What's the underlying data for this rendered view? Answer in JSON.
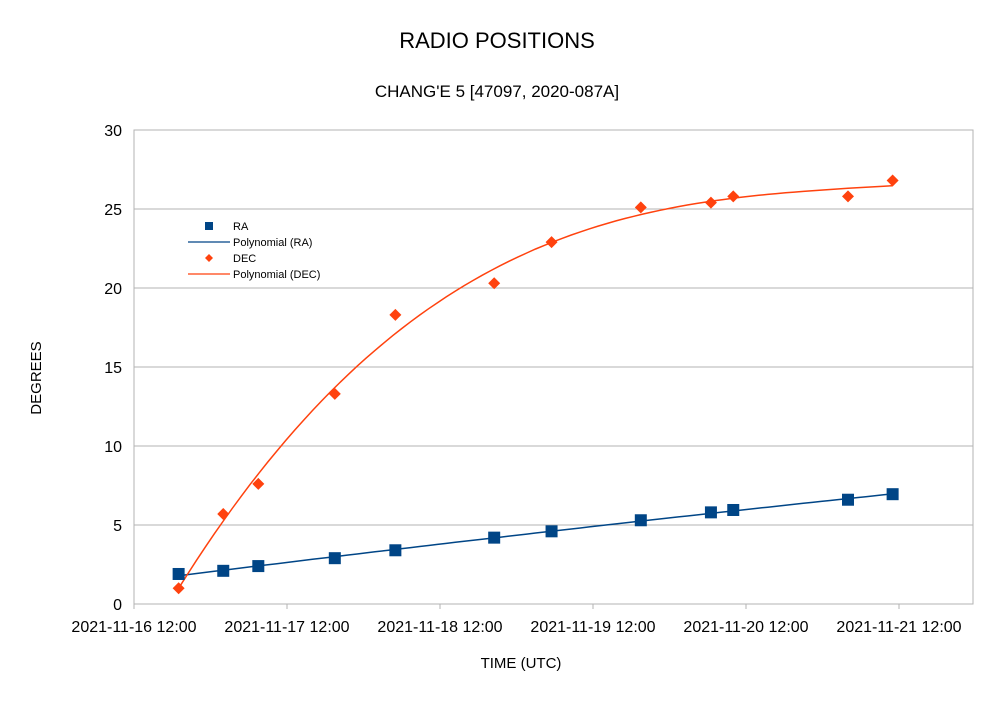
{
  "chart_data": {
    "type": "scatter",
    "title": "RADIO POSITIONS",
    "subtitle": "CHANG'E 5 [47097, 2020-087A]",
    "xlabel": "TIME (UTC)",
    "ylabel": "DEGREES",
    "ylim": [
      0,
      30
    ],
    "y_ticks": [
      "0",
      "5",
      "10",
      "15",
      "20",
      "25",
      "30"
    ],
    "x_ticks": [
      "2021-11-16 12:00",
      "2021-11-17 12:00",
      "2021-11-18 12:00",
      "2021-11-19 12:00",
      "2021-11-20 12:00",
      "2021-11-21 12:00"
    ],
    "grid": "horizontal",
    "legend_position": "top-left",
    "legend": [
      "RA",
      "Polynomial (RA)",
      "DEC",
      "Polynomial (DEC)"
    ],
    "series": [
      {
        "name": "RA",
        "marker": "square",
        "color": "#004586",
        "points": [
          [
            "2021-11-16 19:00",
            1.9
          ],
          [
            "2021-11-17 02:00",
            2.1
          ],
          [
            "2021-11-17 07:30",
            2.4
          ],
          [
            "2021-11-17 19:30",
            2.9
          ],
          [
            "2021-11-18 05:00",
            3.4
          ],
          [
            "2021-11-18 20:30",
            4.2
          ],
          [
            "2021-11-19 05:30",
            4.6
          ],
          [
            "2021-11-19 19:30",
            5.3
          ],
          [
            "2021-11-20 06:30",
            5.8
          ],
          [
            "2021-11-20 10:00",
            5.95
          ],
          [
            "2021-11-21 04:00",
            6.6
          ],
          [
            "2021-11-21 11:00",
            6.95
          ]
        ]
      },
      {
        "name": "DEC",
        "marker": "diamond",
        "color": "#ff420e",
        "points": [
          [
            "2021-11-16 19:00",
            1.0
          ],
          [
            "2021-11-17 02:00",
            5.7
          ],
          [
            "2021-11-17 07:30",
            7.6
          ],
          [
            "2021-11-17 19:30",
            13.3
          ],
          [
            "2021-11-18 05:00",
            18.3
          ],
          [
            "2021-11-18 20:30",
            20.3
          ],
          [
            "2021-11-19 05:30",
            22.9
          ],
          [
            "2021-11-19 19:30",
            25.1
          ],
          [
            "2021-11-20 06:30",
            25.4
          ],
          [
            "2021-11-20 10:00",
            25.8
          ],
          [
            "2021-11-21 04:00",
            25.8
          ],
          [
            "2021-11-21 11:00",
            26.8
          ]
        ]
      }
    ],
    "trendlines": [
      {
        "name": "Polynomial (RA)",
        "of": "RA",
        "color": "#004586",
        "degree": 2
      },
      {
        "name": "Polynomial (DEC)",
        "of": "DEC",
        "color": "#ff420e",
        "degree": 3
      }
    ]
  }
}
